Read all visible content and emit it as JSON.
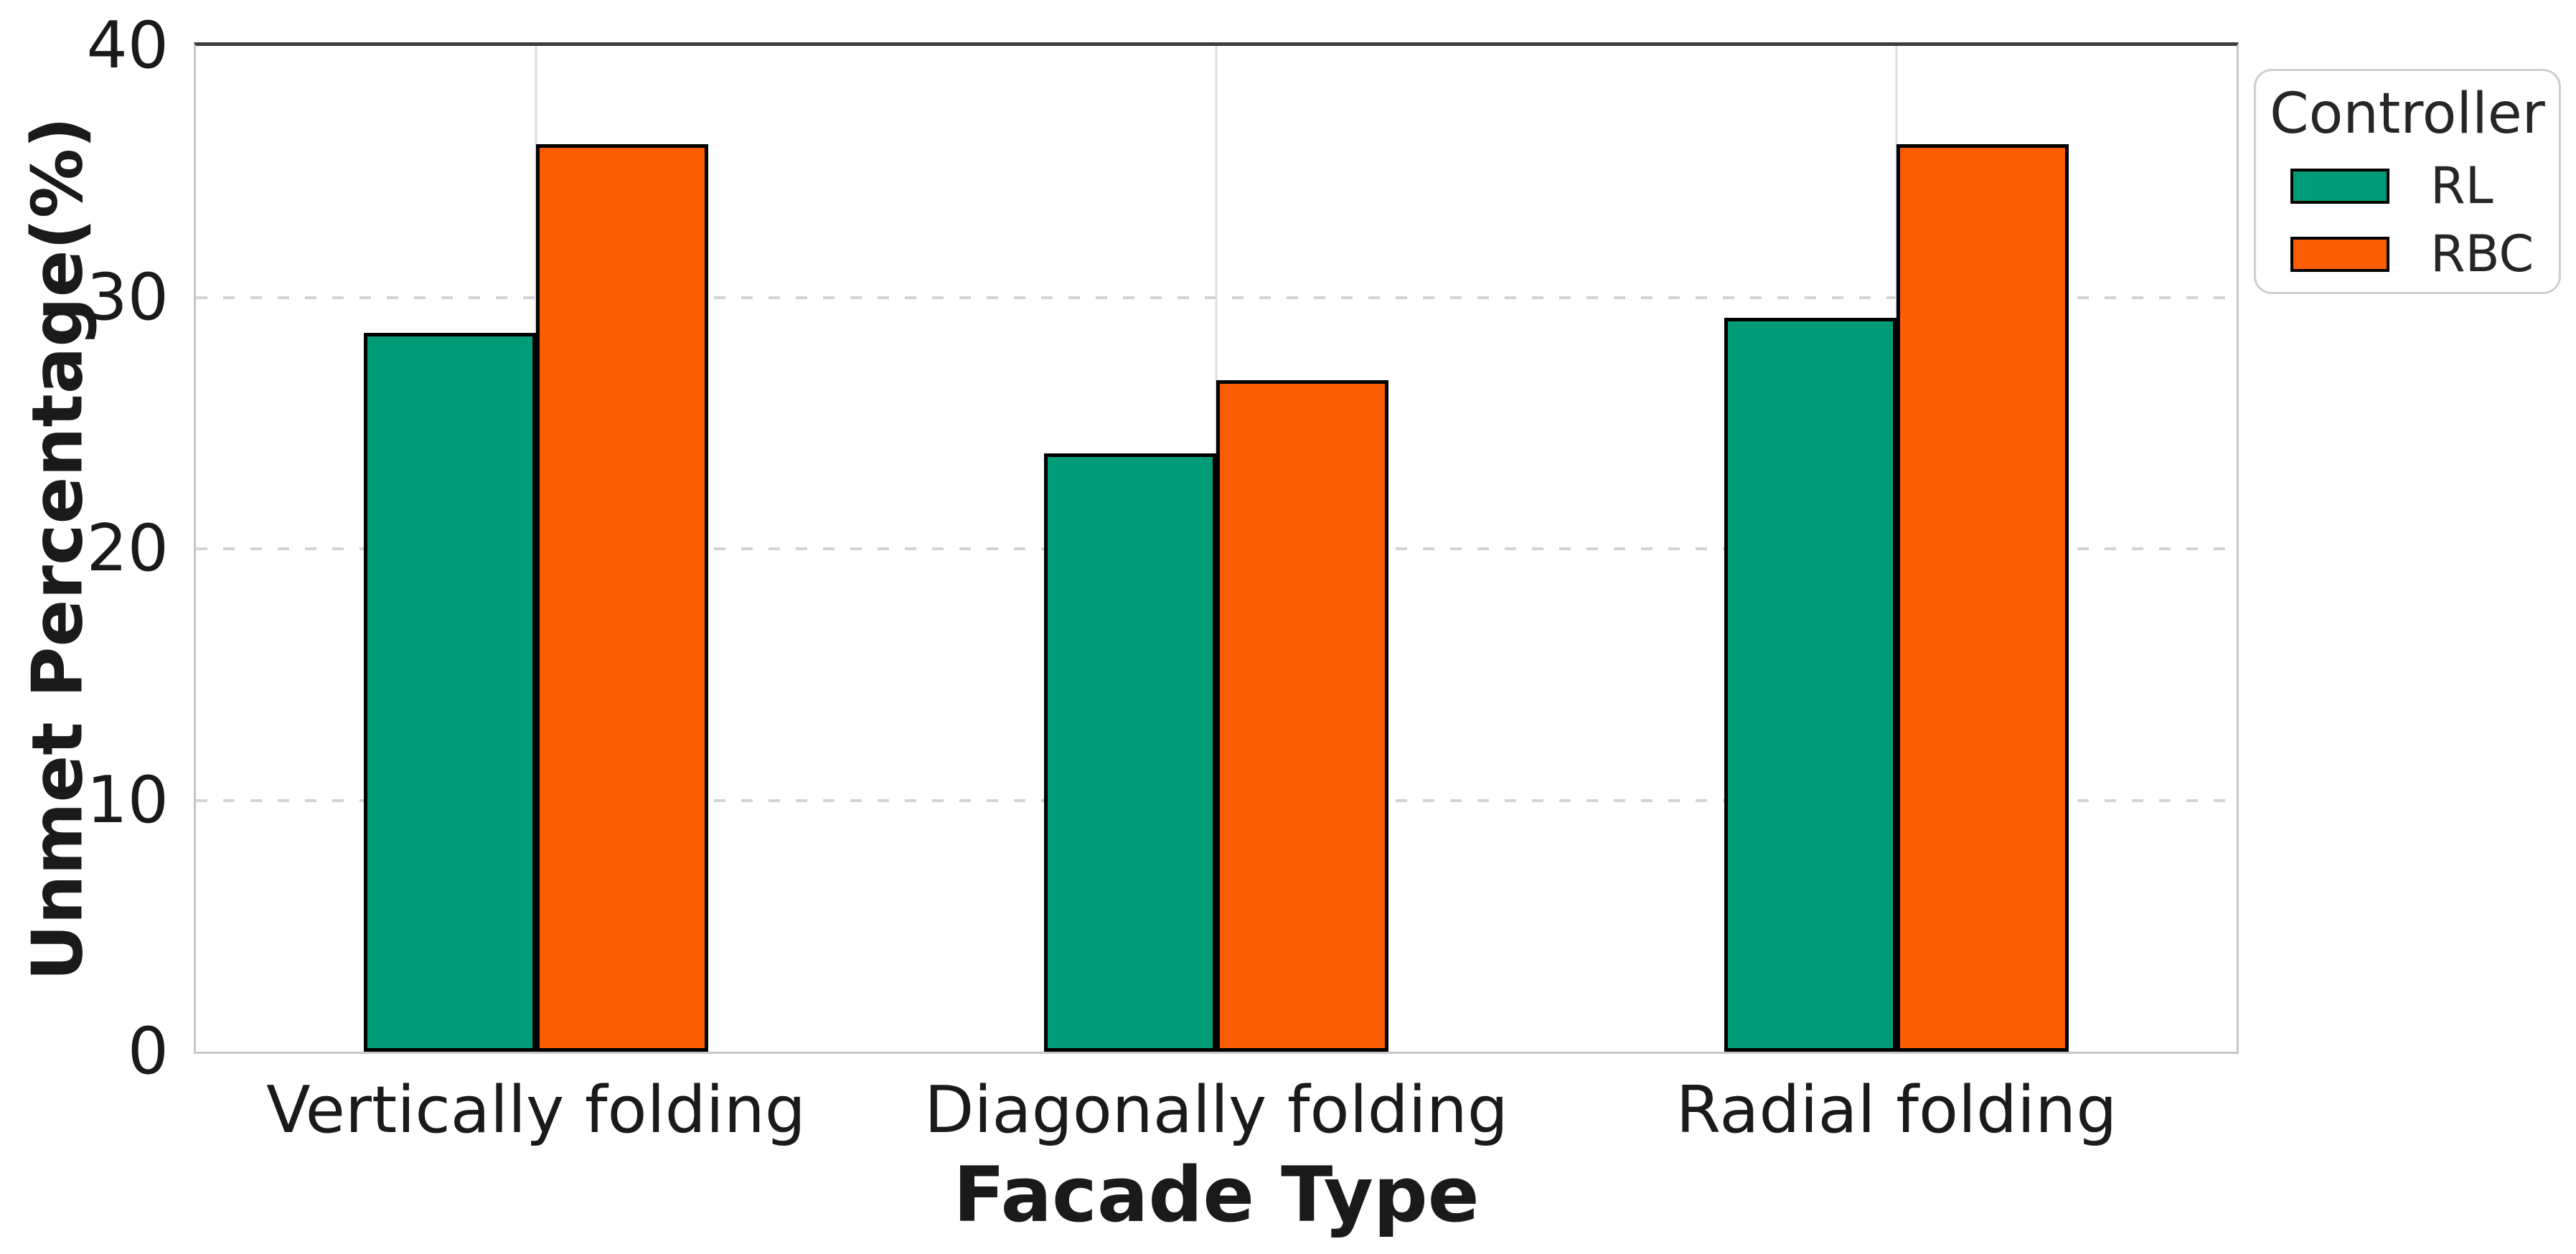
{
  "chart_data": {
    "type": "bar",
    "title": "",
    "xlabel": "Facade Type",
    "ylabel": "Unmet Percentage(%)",
    "categories": [
      "Vertically folding",
      "Diagonally folding",
      "Radial folding"
    ],
    "series": [
      {
        "name": "RL",
        "color": "#009C77",
        "values": [
          28.6,
          23.8,
          29.2
        ]
      },
      {
        "name": "RBC",
        "color": "#FA5D02",
        "values": [
          36.1,
          26.7,
          36.1
        ]
      }
    ],
    "ylim": [
      0,
      40
    ],
    "yticks": [
      0,
      10,
      20,
      30,
      40
    ],
    "legend": {
      "title": "Controller",
      "position": "upper-right-outside"
    },
    "grid": {
      "horizontal": "dashed lines at 10, 20, 30",
      "vertical": "solid light lines at category centers"
    },
    "bar_edge_color": "#000000"
  }
}
